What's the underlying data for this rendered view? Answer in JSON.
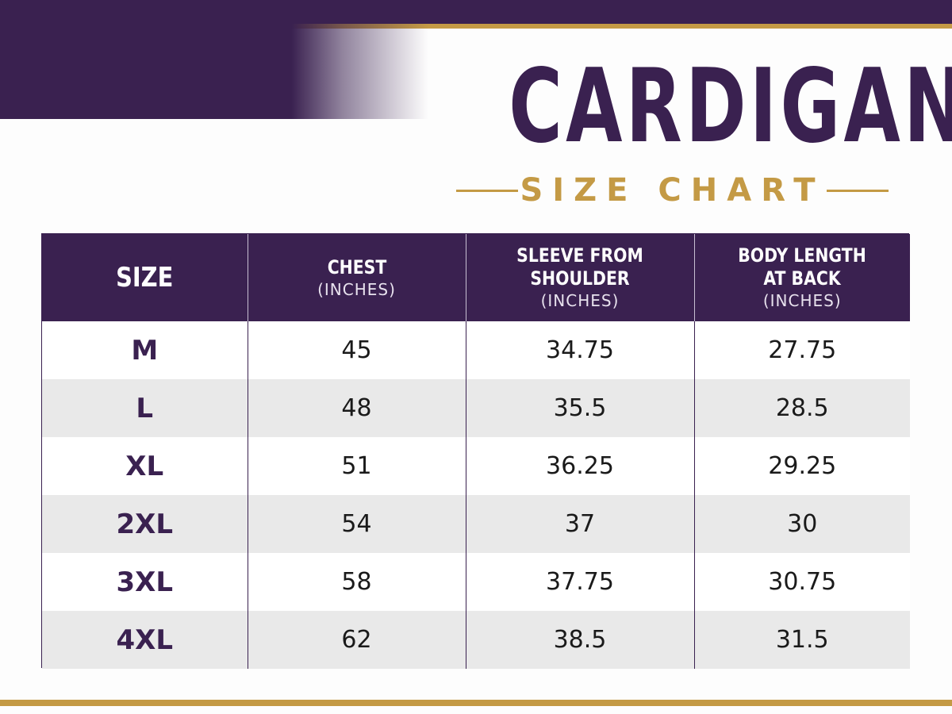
{
  "title": "CARDIGAN",
  "subtitle": "SIZE CHART",
  "colors": {
    "primary": "#3a2150",
    "accent": "#c49a45",
    "row_alt": "#e9e9e9"
  },
  "table": {
    "headers": [
      {
        "main": "SIZE",
        "unit": ""
      },
      {
        "main": "CHEST",
        "unit": "(INCHES)"
      },
      {
        "main": "SLEEVE FROM SHOULDER",
        "unit": "(INCHES)"
      },
      {
        "main": "BODY LENGTH AT BACK",
        "unit": "(INCHES)"
      }
    ],
    "rows": [
      {
        "size": "M",
        "chest": "45",
        "sleeve": "34.75",
        "length": "27.75"
      },
      {
        "size": "L",
        "chest": "48",
        "sleeve": "35.5",
        "length": "28.5"
      },
      {
        "size": "XL",
        "chest": "51",
        "sleeve": "36.25",
        "length": "29.25"
      },
      {
        "size": "2XL",
        "chest": "54",
        "sleeve": "37",
        "length": "30"
      },
      {
        "size": "3XL",
        "chest": "58",
        "sleeve": "37.75",
        "length": "30.75"
      },
      {
        "size": "4XL",
        "chest": "62",
        "sleeve": "38.5",
        "length": "31.5"
      }
    ]
  }
}
